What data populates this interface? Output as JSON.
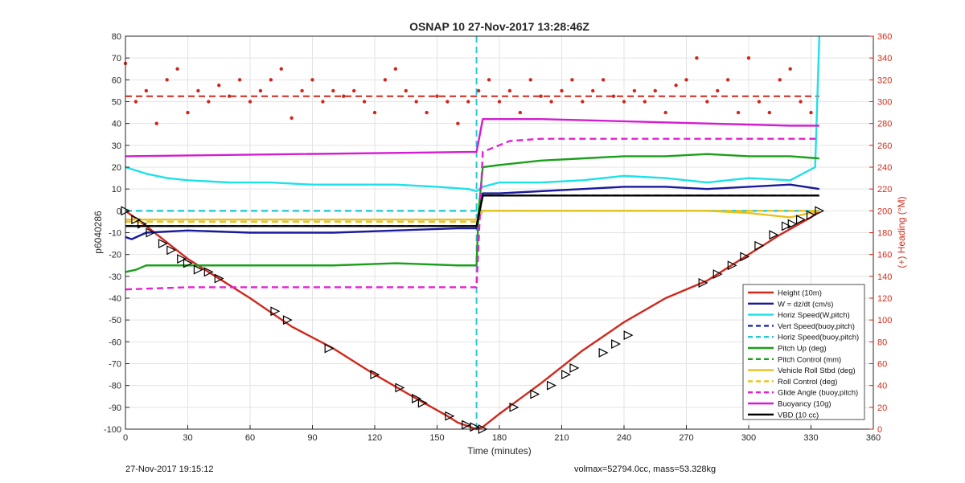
{
  "chart_data": {
    "type": "line",
    "title": "OSNAP 10 27-Nov-2017 13:28:46Z",
    "xlabel": "Time (minutes)",
    "ylabel": "p6040286",
    "ylabel_right": "(+) Heading (°M)",
    "xlim": [
      0,
      360
    ],
    "ylim": [
      -100,
      80
    ],
    "ylim_right": [
      0,
      360
    ],
    "x_ticks": [
      "0",
      "30",
      "60",
      "90",
      "120",
      "150",
      "180",
      "210",
      "240",
      "270",
      "300",
      "330",
      "360"
    ],
    "y_ticks": [
      "80",
      "70",
      "60",
      "50",
      "40",
      "30",
      "20",
      "10",
      "0",
      "-10",
      "-20",
      "-30",
      "-40",
      "-50",
      "-60",
      "-70",
      "-80",
      "-90",
      "-100"
    ],
    "y_ticks_right": [
      "360",
      "340",
      "320",
      "300",
      "280",
      "260",
      "240",
      "220",
      "200",
      "180",
      "160",
      "140",
      "120",
      "100",
      "80",
      "60",
      "40",
      "20",
      "0"
    ],
    "grid": true,
    "legend_position": "bottom-right",
    "series": [
      {
        "name": "Height (10m)",
        "color": "#d0271c",
        "style": "solid",
        "x": [
          0,
          10,
          30,
          45,
          60,
          80,
          100,
          120,
          140,
          155,
          160,
          166,
          169,
          172,
          180,
          200,
          220,
          240,
          260,
          280,
          300,
          315,
          330,
          334
        ],
        "y": [
          0,
          -7,
          -22,
          -31,
          -40,
          -53,
          -63,
          -75,
          -86,
          -94,
          -97,
          -99,
          -100,
          -99,
          -93,
          -79,
          -64,
          -51,
          -40,
          -32,
          -20,
          -11,
          -3,
          0
        ]
      },
      {
        "name": "W = dz/dt (cm/s)",
        "color": "#1a1a9e",
        "style": "solid",
        "x": [
          0,
          3,
          10,
          30,
          60,
          100,
          130,
          160,
          169,
          170,
          172,
          180,
          200,
          220,
          240,
          260,
          280,
          300,
          320,
          334
        ],
        "y": [
          -12,
          -13,
          -10,
          -9,
          -10,
          -10,
          -9,
          -8,
          -8,
          -1,
          8,
          8,
          9,
          10,
          11,
          11,
          10,
          11,
          12,
          10
        ]
      },
      {
        "name": "Horiz Speed(W,pitch)",
        "color": "#1ee0e8",
        "style": "solid",
        "x": [
          0,
          10,
          20,
          30,
          50,
          70,
          90,
          110,
          130,
          150,
          165,
          169,
          172,
          180,
          200,
          220,
          240,
          260,
          280,
          300,
          320,
          332,
          334
        ],
        "y": [
          20,
          17,
          15,
          14,
          13,
          13,
          12,
          12,
          12,
          11,
          10,
          9,
          11,
          13,
          13,
          14,
          16,
          15,
          13,
          15,
          14,
          20,
          80
        ]
      },
      {
        "name": "Vert Speed(buoy,pitch)",
        "color": "#1a2ab0",
        "style": "dashed",
        "x": [
          0,
          169,
          172,
          334
        ],
        "y": [
          -7,
          -7,
          7,
          7
        ]
      },
      {
        "name": "Horiz Speed(buoy,pitch)",
        "color": "#29c8d8",
        "style": "dashed",
        "x": [
          0,
          169,
          172,
          334
        ],
        "y": [
          0,
          0,
          0,
          0
        ]
      },
      {
        "name": "Pitch Up (deg)",
        "color": "#1aa01a",
        "style": "solid",
        "x": [
          0,
          5,
          10,
          40,
          60,
          100,
          130,
          160,
          169,
          170,
          172,
          180,
          200,
          220,
          240,
          260,
          280,
          300,
          320,
          334
        ],
        "y": [
          -28,
          -27,
          -25,
          -25,
          -25,
          -25,
          -24,
          -25,
          -25,
          0,
          20,
          21,
          23,
          24,
          25,
          25,
          26,
          25,
          25,
          24
        ]
      },
      {
        "name": "Pitch Control (mm)",
        "color": "#1aa01a",
        "style": "dashed",
        "x": [
          0,
          169,
          172,
          334
        ],
        "y": [
          -7,
          -7,
          7,
          7
        ]
      },
      {
        "name": "Vehicle Roll Stbd (deg)",
        "color": "#e6c21c",
        "style": "solid",
        "x": [
          0,
          20,
          40,
          60,
          100,
          140,
          169,
          172,
          200,
          240,
          280,
          300,
          320,
          334
        ],
        "y": [
          -4,
          -4,
          -4,
          -4,
          -4,
          -4,
          -4,
          0,
          0,
          0,
          0,
          -1,
          -3,
          0
        ]
      },
      {
        "name": "Roll Control (deg)",
        "color": "#e6c21c",
        "style": "dashed",
        "x": [
          0,
          169,
          172,
          334
        ],
        "y": [
          -5,
          -5,
          0,
          0
        ]
      },
      {
        "name": "Glide Angle (buoy,pitch)",
        "color": "#e61ed6",
        "style": "dashed",
        "x": [
          0,
          30,
          60,
          100,
          140,
          169,
          172,
          185,
          200,
          240,
          280,
          320,
          334
        ],
        "y": [
          -36,
          -35,
          -35,
          -35,
          -35,
          -35,
          27,
          32,
          33,
          33,
          33,
          33,
          33
        ]
      },
      {
        "name": "Buoyancy (10g)",
        "color": "#d21ed2",
        "style": "solid",
        "x": [
          0,
          169,
          172,
          200,
          240,
          280,
          320,
          334
        ],
        "y": [
          25,
          27,
          42,
          42,
          41,
          40,
          39,
          39
        ]
      },
      {
        "name": "VBD (10 cc)",
        "color": "#000000",
        "style": "solid",
        "x": [
          0,
          169,
          172,
          334
        ],
        "y": [
          -7,
          -7,
          7,
          7
        ]
      }
    ],
    "annotations": [
      {
        "name": "heading-dashed-line",
        "color": "#d0271c",
        "x": [
          0,
          334
        ],
        "y_right": [
          305,
          305
        ]
      },
      {
        "name": "apogee-dashed-line",
        "color": "#29c8d8",
        "x": [
          169,
          169
        ],
        "y": [
          -100,
          80
        ]
      }
    ],
    "heading_points": {
      "axis": "right",
      "color": "#d0271c",
      "x": [
        0,
        5,
        10,
        15,
        20,
        25,
        30,
        35,
        40,
        45,
        50,
        55,
        60,
        65,
        70,
        75,
        80,
        85,
        90,
        95,
        100,
        105,
        110,
        115,
        120,
        125,
        130,
        135,
        140,
        145,
        150,
        155,
        160,
        165,
        170,
        175,
        180,
        185,
        190,
        195,
        200,
        205,
        210,
        215,
        220,
        225,
        230,
        235,
        240,
        245,
        250,
        255,
        260,
        265,
        270,
        275,
        280,
        285,
        290,
        295,
        300,
        305,
        310,
        315,
        320,
        325,
        330
      ],
      "y": [
        335,
        300,
        310,
        280,
        320,
        330,
        290,
        310,
        300,
        315,
        305,
        320,
        300,
        310,
        320,
        330,
        285,
        310,
        320,
        300,
        310,
        305,
        310,
        300,
        290,
        320,
        330,
        310,
        300,
        290,
        305,
        300,
        280,
        300,
        310,
        320,
        300,
        310,
        290,
        320,
        305,
        300,
        310,
        320,
        300,
        310,
        320,
        305,
        300,
        310,
        300,
        310,
        290,
        315,
        320,
        340,
        300,
        310,
        320,
        290,
        340,
        300,
        290,
        320,
        330,
        300,
        290
      ]
    },
    "height_markers": {
      "x": [
        0,
        5,
        8,
        12,
        18,
        22,
        27,
        30,
        35,
        40,
        45,
        72,
        78,
        98,
        120,
        132,
        140,
        143,
        156,
        164,
        168,
        172,
        187,
        197,
        205,
        212,
        216,
        230,
        236,
        242,
        278,
        285,
        292,
        298,
        305,
        312,
        318,
        321,
        325,
        330,
        334
      ],
      "y": [
        0,
        -4,
        -6,
        -10,
        -15,
        -18,
        -22,
        -24,
        -27,
        -28,
        -31,
        -46,
        -50,
        -63,
        -75,
        -81,
        -86,
        -88,
        -94,
        -98,
        -99,
        -100,
        -90,
        -84,
        -80,
        -75,
        -72,
        -65,
        -61,
        -57,
        -33,
        -29,
        -25,
        -21,
        -16,
        -11,
        -7,
        -6,
        -4,
        -2,
        0
      ]
    },
    "footer_left": "27-Nov-2017 19:15:12",
    "footer_right": "volmax=52794.0cc, mass=53.328kg"
  }
}
